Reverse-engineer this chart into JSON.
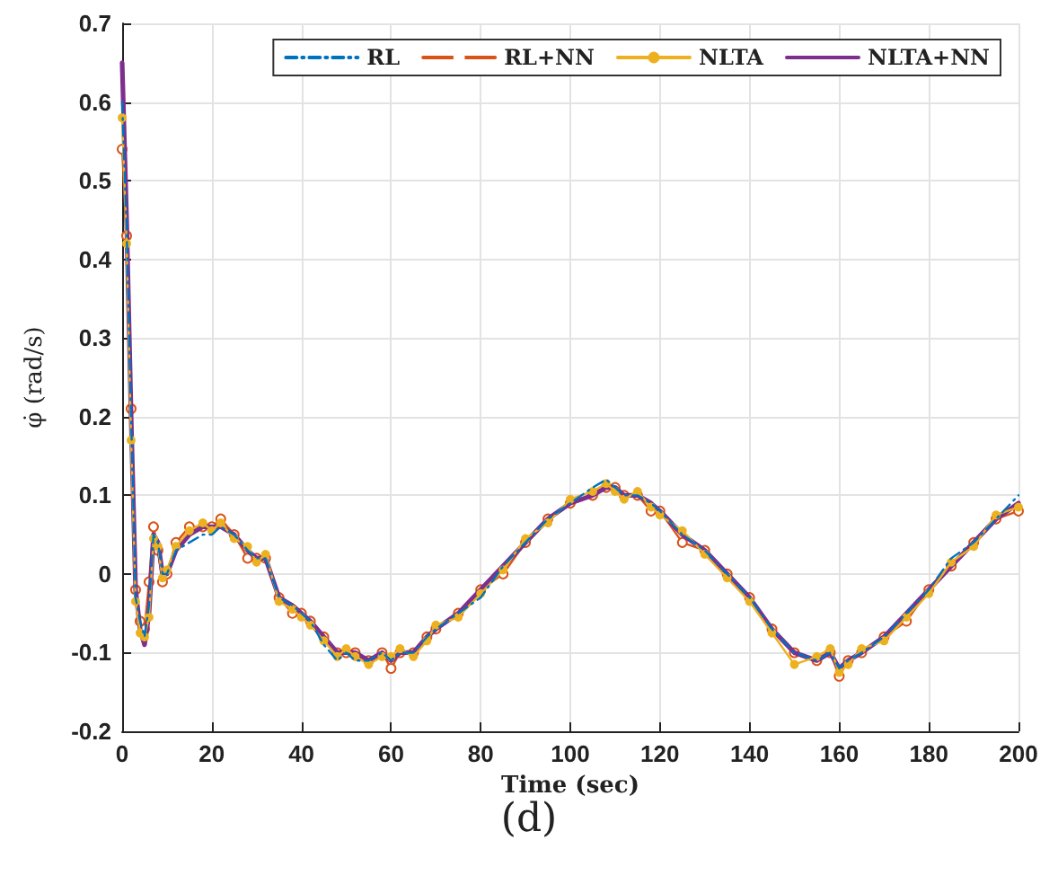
{
  "chart_data": {
    "type": "line",
    "xlabel": "Time (sec)",
    "ylabel": "φ̇ (rad/s)",
    "annotations": [
      "(d)"
    ],
    "x": [
      0,
      1,
      2,
      3,
      4,
      5,
      6,
      7,
      8,
      9,
      10,
      12,
      15,
      18,
      20,
      22,
      25,
      28,
      30,
      32,
      35,
      38,
      40,
      42,
      45,
      48,
      50,
      52,
      55,
      58,
      60,
      62,
      65,
      68,
      70,
      75,
      80,
      85,
      90,
      95,
      100,
      105,
      108,
      110,
      112,
      115,
      118,
      120,
      125,
      130,
      135,
      140,
      145,
      150,
      155,
      158,
      160,
      162,
      165,
      170,
      175,
      180,
      185,
      190,
      195,
      200
    ],
    "xlim": [
      0,
      200
    ],
    "xticks": [
      0,
      20,
      40,
      60,
      80,
      100,
      120,
      140,
      160,
      180,
      200
    ],
    "ylim": [
      -0.2,
      0.7
    ],
    "yticks": [
      -0.2,
      -0.1,
      0,
      0.1,
      0.2,
      0.3,
      0.4,
      0.5,
      0.6,
      0.7
    ],
    "grid": true,
    "legend": "top right",
    "series": [
      {
        "name": "RL",
        "color": "#0072bd",
        "line_style": "dashdot",
        "marker": "none",
        "values": [
          0.6,
          0.44,
          0.2,
          -0.03,
          -0.06,
          -0.08,
          -0.04,
          0.05,
          0.04,
          0.0,
          0.0,
          0.03,
          0.04,
          0.05,
          0.05,
          0.06,
          0.05,
          0.03,
          0.02,
          0.02,
          -0.03,
          -0.04,
          -0.05,
          -0.06,
          -0.09,
          -0.11,
          -0.1,
          -0.11,
          -0.11,
          -0.1,
          -0.11,
          -0.1,
          -0.1,
          -0.08,
          -0.07,
          -0.05,
          -0.03,
          0.01,
          0.04,
          0.07,
          0.09,
          0.11,
          0.12,
          0.11,
          0.1,
          0.1,
          0.09,
          0.08,
          0.05,
          0.03,
          0.0,
          -0.03,
          -0.07,
          -0.1,
          -0.11,
          -0.1,
          -0.12,
          -0.11,
          -0.1,
          -0.08,
          -0.05,
          -0.02,
          0.02,
          0.04,
          0.07,
          0.1
        ]
      },
      {
        "name": "RL+NN",
        "color": "#d95319",
        "marker": "circle",
        "values": [
          0.54,
          0.43,
          0.21,
          -0.02,
          -0.06,
          -0.07,
          -0.01,
          0.06,
          0.03,
          -0.01,
          0.0,
          0.04,
          0.06,
          0.06,
          0.06,
          0.07,
          0.05,
          0.02,
          0.02,
          0.02,
          -0.03,
          -0.05,
          -0.05,
          -0.06,
          -0.08,
          -0.1,
          -0.1,
          -0.1,
          -0.11,
          -0.1,
          -0.12,
          -0.1,
          -0.1,
          -0.08,
          -0.07,
          -0.05,
          -0.02,
          0.0,
          0.04,
          0.07,
          0.09,
          0.1,
          0.11,
          0.11,
          0.1,
          0.1,
          0.08,
          0.08,
          0.04,
          0.03,
          0.0,
          -0.03,
          -0.07,
          -0.1,
          -0.11,
          -0.1,
          -0.13,
          -0.11,
          -0.1,
          -0.08,
          -0.06,
          -0.02,
          0.01,
          0.04,
          0.07,
          0.08
        ]
      },
      {
        "name": "NLTA",
        "color": "#edb120",
        "marker": "circle",
        "values": [
          0.58,
          0.42,
          0.17,
          -0.035,
          -0.075,
          -0.08,
          -0.055,
          0.045,
          0.035,
          -0.005,
          0.005,
          0.035,
          0.055,
          0.065,
          0.055,
          0.065,
          0.045,
          0.035,
          0.015,
          0.025,
          -0.035,
          -0.045,
          -0.055,
          -0.065,
          -0.085,
          -0.105,
          -0.095,
          -0.105,
          -0.115,
          -0.105,
          -0.105,
          -0.095,
          -0.105,
          -0.085,
          -0.065,
          -0.055,
          -0.025,
          0.005,
          0.045,
          0.065,
          0.095,
          0.105,
          0.115,
          0.105,
          0.095,
          0.105,
          0.085,
          0.075,
          0.055,
          0.025,
          -0.005,
          -0.035,
          -0.075,
          -0.115,
          -0.105,
          -0.095,
          -0.125,
          -0.115,
          -0.095,
          -0.085,
          -0.055,
          -0.025,
          0.015,
          0.035,
          0.075,
          0.085
        ]
      },
      {
        "name": "NLTA+NN",
        "color": "#7e2f8e",
        "marker": "none",
        "values": [
          0.65,
          0.45,
          0.2,
          -0.02,
          -0.07,
          -0.09,
          -0.05,
          0.05,
          0.04,
          0.0,
          0.0,
          0.03,
          0.05,
          0.06,
          0.06,
          0.06,
          0.05,
          0.03,
          0.02,
          0.02,
          -0.03,
          -0.04,
          -0.05,
          -0.06,
          -0.08,
          -0.1,
          -0.1,
          -0.1,
          -0.11,
          -0.1,
          -0.11,
          -0.1,
          -0.1,
          -0.08,
          -0.07,
          -0.05,
          -0.02,
          0.01,
          0.04,
          0.07,
          0.09,
          0.1,
          0.11,
          0.11,
          0.1,
          0.1,
          0.09,
          0.08,
          0.05,
          0.03,
          0.0,
          -0.03,
          -0.07,
          -0.1,
          -0.11,
          -0.1,
          -0.12,
          -0.11,
          -0.1,
          -0.08,
          -0.05,
          -0.02,
          0.01,
          0.04,
          0.07,
          0.09
        ]
      }
    ]
  }
}
